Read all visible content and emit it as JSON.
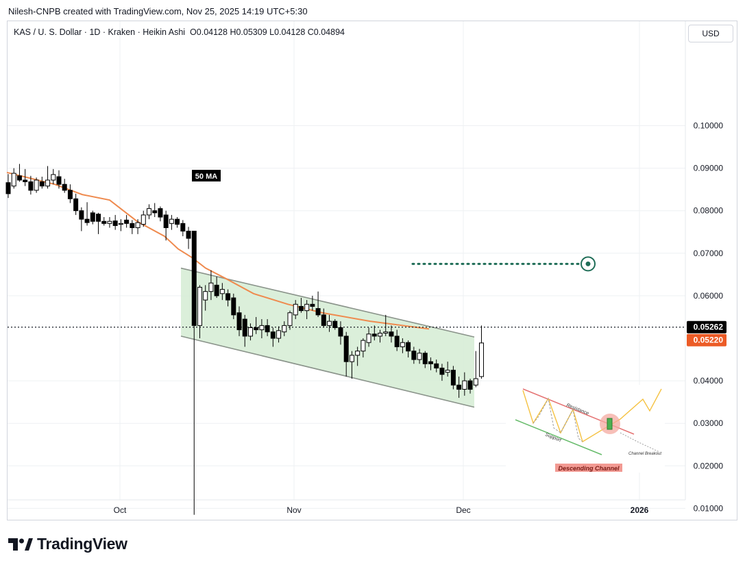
{
  "header": {
    "attribution": "Nilesh-CNPB created with TradingView.com, Nov 25, 2025 14:19 UTC+5:30"
  },
  "legend": {
    "symbol": "KAS / U. S. Dollar · 1D · Kraken · Heikin Ashi",
    "open": "O0.04128",
    "high": "H0.05309",
    "low": "L0.04128",
    "close": "C0.04894"
  },
  "currency_button": "USD",
  "brand": {
    "name": "TradingView"
  },
  "colors": {
    "candle_up": "#ffffff",
    "candle_down": "#000000",
    "channel_fill": "#d5ecd4",
    "channel_line": "#8a938a",
    "ma_line": "#ef8a4e",
    "target_dots": "#1f6d57",
    "grid": "#eef0f3",
    "last_price_bg": "#000000",
    "ma_price_bg": "#ec5b26"
  },
  "chart_data": {
    "type": "candlestick",
    "title": "",
    "ylim": [
      0.0,
      0.11
    ],
    "y_ticks": [
      "0.10000",
      "0.09000",
      "0.08000",
      "0.07000",
      "0.06000",
      "0.04000",
      "0.03000",
      "0.02000",
      "0.01000"
    ],
    "x_ticks": [
      "Oct",
      "Nov",
      "Dec",
      "2026"
    ],
    "last_price": "0.05262",
    "ma_price": "0.05220",
    "ma_label": "50 MA",
    "candles": [
      {
        "o": 0.0866,
        "h": 0.0886,
        "l": 0.083,
        "c": 0.084
      },
      {
        "o": 0.0858,
        "h": 0.09,
        "l": 0.0852,
        "c": 0.0888
      },
      {
        "o": 0.0882,
        "h": 0.091,
        "l": 0.0868,
        "c": 0.0872
      },
      {
        "o": 0.0872,
        "h": 0.0898,
        "l": 0.0858,
        "c": 0.0868
      },
      {
        "o": 0.0868,
        "h": 0.0882,
        "l": 0.0838,
        "c": 0.0848
      },
      {
        "o": 0.0848,
        "h": 0.0878,
        "l": 0.0842,
        "c": 0.0872
      },
      {
        "o": 0.0868,
        "h": 0.088,
        "l": 0.0852,
        "c": 0.0858
      },
      {
        "o": 0.0858,
        "h": 0.0905,
        "l": 0.0852,
        "c": 0.0872
      },
      {
        "o": 0.0872,
        "h": 0.0898,
        "l": 0.0862,
        "c": 0.0885
      },
      {
        "o": 0.088,
        "h": 0.0895,
        "l": 0.0852,
        "c": 0.0862
      },
      {
        "o": 0.0862,
        "h": 0.0875,
        "l": 0.0842,
        "c": 0.0848
      },
      {
        "o": 0.0848,
        "h": 0.0862,
        "l": 0.0818,
        "c": 0.0828
      },
      {
        "o": 0.0828,
        "h": 0.084,
        "l": 0.079,
        "c": 0.08
      },
      {
        "o": 0.08,
        "h": 0.0808,
        "l": 0.0752,
        "c": 0.078
      },
      {
        "o": 0.078,
        "h": 0.082,
        "l": 0.0765,
        "c": 0.0772
      },
      {
        "o": 0.0795,
        "h": 0.08,
        "l": 0.0768,
        "c": 0.0775
      },
      {
        "o": 0.0792,
        "h": 0.0795,
        "l": 0.0745,
        "c": 0.0775
      },
      {
        "o": 0.0775,
        "h": 0.0785,
        "l": 0.0765,
        "c": 0.077
      },
      {
        "o": 0.077,
        "h": 0.0785,
        "l": 0.076,
        "c": 0.0775
      },
      {
        "o": 0.0776,
        "h": 0.079,
        "l": 0.0755,
        "c": 0.0765
      },
      {
        "o": 0.0768,
        "h": 0.078,
        "l": 0.0752,
        "c": 0.077
      },
      {
        "o": 0.0778,
        "h": 0.079,
        "l": 0.076,
        "c": 0.077
      },
      {
        "o": 0.077,
        "h": 0.0778,
        "l": 0.0745,
        "c": 0.076
      },
      {
        "o": 0.076,
        "h": 0.078,
        "l": 0.0745,
        "c": 0.0772
      },
      {
        "o": 0.0768,
        "h": 0.08,
        "l": 0.0762,
        "c": 0.079
      },
      {
        "o": 0.079,
        "h": 0.0815,
        "l": 0.078,
        "c": 0.0805
      },
      {
        "o": 0.08,
        "h": 0.0818,
        "l": 0.0785,
        "c": 0.0795
      },
      {
        "o": 0.0805,
        "h": 0.081,
        "l": 0.0775,
        "c": 0.0785
      },
      {
        "o": 0.079,
        "h": 0.08,
        "l": 0.073,
        "c": 0.076
      },
      {
        "o": 0.077,
        "h": 0.079,
        "l": 0.0755,
        "c": 0.078
      },
      {
        "o": 0.078,
        "h": 0.0785,
        "l": 0.076,
        "c": 0.0768
      },
      {
        "o": 0.077,
        "h": 0.0778,
        "l": 0.074,
        "c": 0.0752
      },
      {
        "o": 0.0752,
        "h": 0.0762,
        "l": 0.071,
        "c": 0.0735
      },
      {
        "o": 0.0752,
        "h": 0.0752,
        "l": 0.0085,
        "c": 0.053
      },
      {
        "o": 0.053,
        "h": 0.0625,
        "l": 0.05,
        "c": 0.062
      },
      {
        "o": 0.059,
        "h": 0.0625,
        "l": 0.0565,
        "c": 0.061
      },
      {
        "o": 0.061,
        "h": 0.066,
        "l": 0.059,
        "c": 0.063
      },
      {
        "o": 0.0625,
        "h": 0.0645,
        "l": 0.0595,
        "c": 0.06
      },
      {
        "o": 0.0605,
        "h": 0.063,
        "l": 0.059,
        "c": 0.0615
      },
      {
        "o": 0.0605,
        "h": 0.0615,
        "l": 0.0575,
        "c": 0.059
      },
      {
        "o": 0.0595,
        "h": 0.0605,
        "l": 0.0545,
        "c": 0.0555
      },
      {
        "o": 0.056,
        "h": 0.0575,
        "l": 0.0505,
        "c": 0.052
      },
      {
        "o": 0.0545,
        "h": 0.0555,
        "l": 0.048,
        "c": 0.0505
      },
      {
        "o": 0.0505,
        "h": 0.0535,
        "l": 0.0495,
        "c": 0.0525
      },
      {
        "o": 0.0525,
        "h": 0.055,
        "l": 0.051,
        "c": 0.052
      },
      {
        "o": 0.052,
        "h": 0.0545,
        "l": 0.05,
        "c": 0.053
      },
      {
        "o": 0.053,
        "h": 0.0545,
        "l": 0.0505,
        "c": 0.0515
      },
      {
        "o": 0.0515,
        "h": 0.0525,
        "l": 0.048,
        "c": 0.05
      },
      {
        "o": 0.05,
        "h": 0.0528,
        "l": 0.049,
        "c": 0.0518
      },
      {
        "o": 0.0515,
        "h": 0.054,
        "l": 0.0505,
        "c": 0.053
      },
      {
        "o": 0.053,
        "h": 0.0565,
        "l": 0.052,
        "c": 0.056
      },
      {
        "o": 0.0555,
        "h": 0.059,
        "l": 0.0545,
        "c": 0.058
      },
      {
        "o": 0.0575,
        "h": 0.0595,
        "l": 0.056,
        "c": 0.0565
      },
      {
        "o": 0.0565,
        "h": 0.059,
        "l": 0.0545,
        "c": 0.058
      },
      {
        "o": 0.058,
        "h": 0.06,
        "l": 0.0565,
        "c": 0.0575
      },
      {
        "o": 0.057,
        "h": 0.061,
        "l": 0.055,
        "c": 0.0555
      },
      {
        "o": 0.0555,
        "h": 0.057,
        "l": 0.0525,
        "c": 0.053
      },
      {
        "o": 0.053,
        "h": 0.0555,
        "l": 0.0515,
        "c": 0.054
      },
      {
        "o": 0.054,
        "h": 0.0545,
        "l": 0.052,
        "c": 0.0525
      },
      {
        "o": 0.0525,
        "h": 0.054,
        "l": 0.0485,
        "c": 0.0505
      },
      {
        "o": 0.0505,
        "h": 0.0515,
        "l": 0.041,
        "c": 0.0445
      },
      {
        "o": 0.0445,
        "h": 0.047,
        "l": 0.0405,
        "c": 0.046
      },
      {
        "o": 0.046,
        "h": 0.048,
        "l": 0.0435,
        "c": 0.047
      },
      {
        "o": 0.047,
        "h": 0.05,
        "l": 0.0455,
        "c": 0.0495
      },
      {
        "o": 0.049,
        "h": 0.0525,
        "l": 0.048,
        "c": 0.051
      },
      {
        "o": 0.051,
        "h": 0.053,
        "l": 0.0495,
        "c": 0.0505
      },
      {
        "o": 0.0505,
        "h": 0.052,
        "l": 0.049,
        "c": 0.0512
      },
      {
        "o": 0.0512,
        "h": 0.0555,
        "l": 0.0505,
        "c": 0.0515
      },
      {
        "o": 0.0515,
        "h": 0.053,
        "l": 0.049,
        "c": 0.0505
      },
      {
        "o": 0.0505,
        "h": 0.052,
        "l": 0.047,
        "c": 0.048
      },
      {
        "o": 0.048,
        "h": 0.05,
        "l": 0.0465,
        "c": 0.049
      },
      {
        "o": 0.049,
        "h": 0.0495,
        "l": 0.0455,
        "c": 0.047
      },
      {
        "o": 0.047,
        "h": 0.048,
        "l": 0.044,
        "c": 0.045
      },
      {
        "o": 0.045,
        "h": 0.0475,
        "l": 0.044,
        "c": 0.0465
      },
      {
        "o": 0.0465,
        "h": 0.047,
        "l": 0.043,
        "c": 0.044
      },
      {
        "o": 0.0445,
        "h": 0.0455,
        "l": 0.0425,
        "c": 0.044
      },
      {
        "o": 0.044,
        "h": 0.045,
        "l": 0.042,
        "c": 0.043
      },
      {
        "o": 0.043,
        "h": 0.044,
        "l": 0.04,
        "c": 0.0415
      },
      {
        "o": 0.042,
        "h": 0.0445,
        "l": 0.041,
        "c": 0.0425
      },
      {
        "o": 0.0425,
        "h": 0.0435,
        "l": 0.038,
        "c": 0.039
      },
      {
        "o": 0.039,
        "h": 0.041,
        "l": 0.036,
        "c": 0.038
      },
      {
        "o": 0.038,
        "h": 0.042,
        "l": 0.0365,
        "c": 0.04
      },
      {
        "o": 0.04,
        "h": 0.0405,
        "l": 0.037,
        "c": 0.038
      },
      {
        "o": 0.039,
        "h": 0.047,
        "l": 0.0385,
        "c": 0.0405
      },
      {
        "o": 0.041,
        "h": 0.053,
        "l": 0.0405,
        "c": 0.0489
      }
    ],
    "ma50": [
      0.089,
      0.0878,
      0.0862,
      0.0838,
      0.0825,
      0.0775,
      0.074,
      0.071,
      0.069,
      0.0665,
      0.064,
      0.0605,
      0.058,
      0.056,
      0.054,
      0.0522
    ],
    "channel": {
      "upper": [
        [
          0.0665
        ],
        [
          0.0503
        ]
      ],
      "lower": [
        [
          0.0505
        ],
        [
          0.0338
        ]
      ]
    },
    "target_level": 0.0675,
    "inset": {
      "labels": [
        "Resistance",
        "Support",
        "Channel Breakout",
        "Descending Channel"
      ]
    }
  }
}
